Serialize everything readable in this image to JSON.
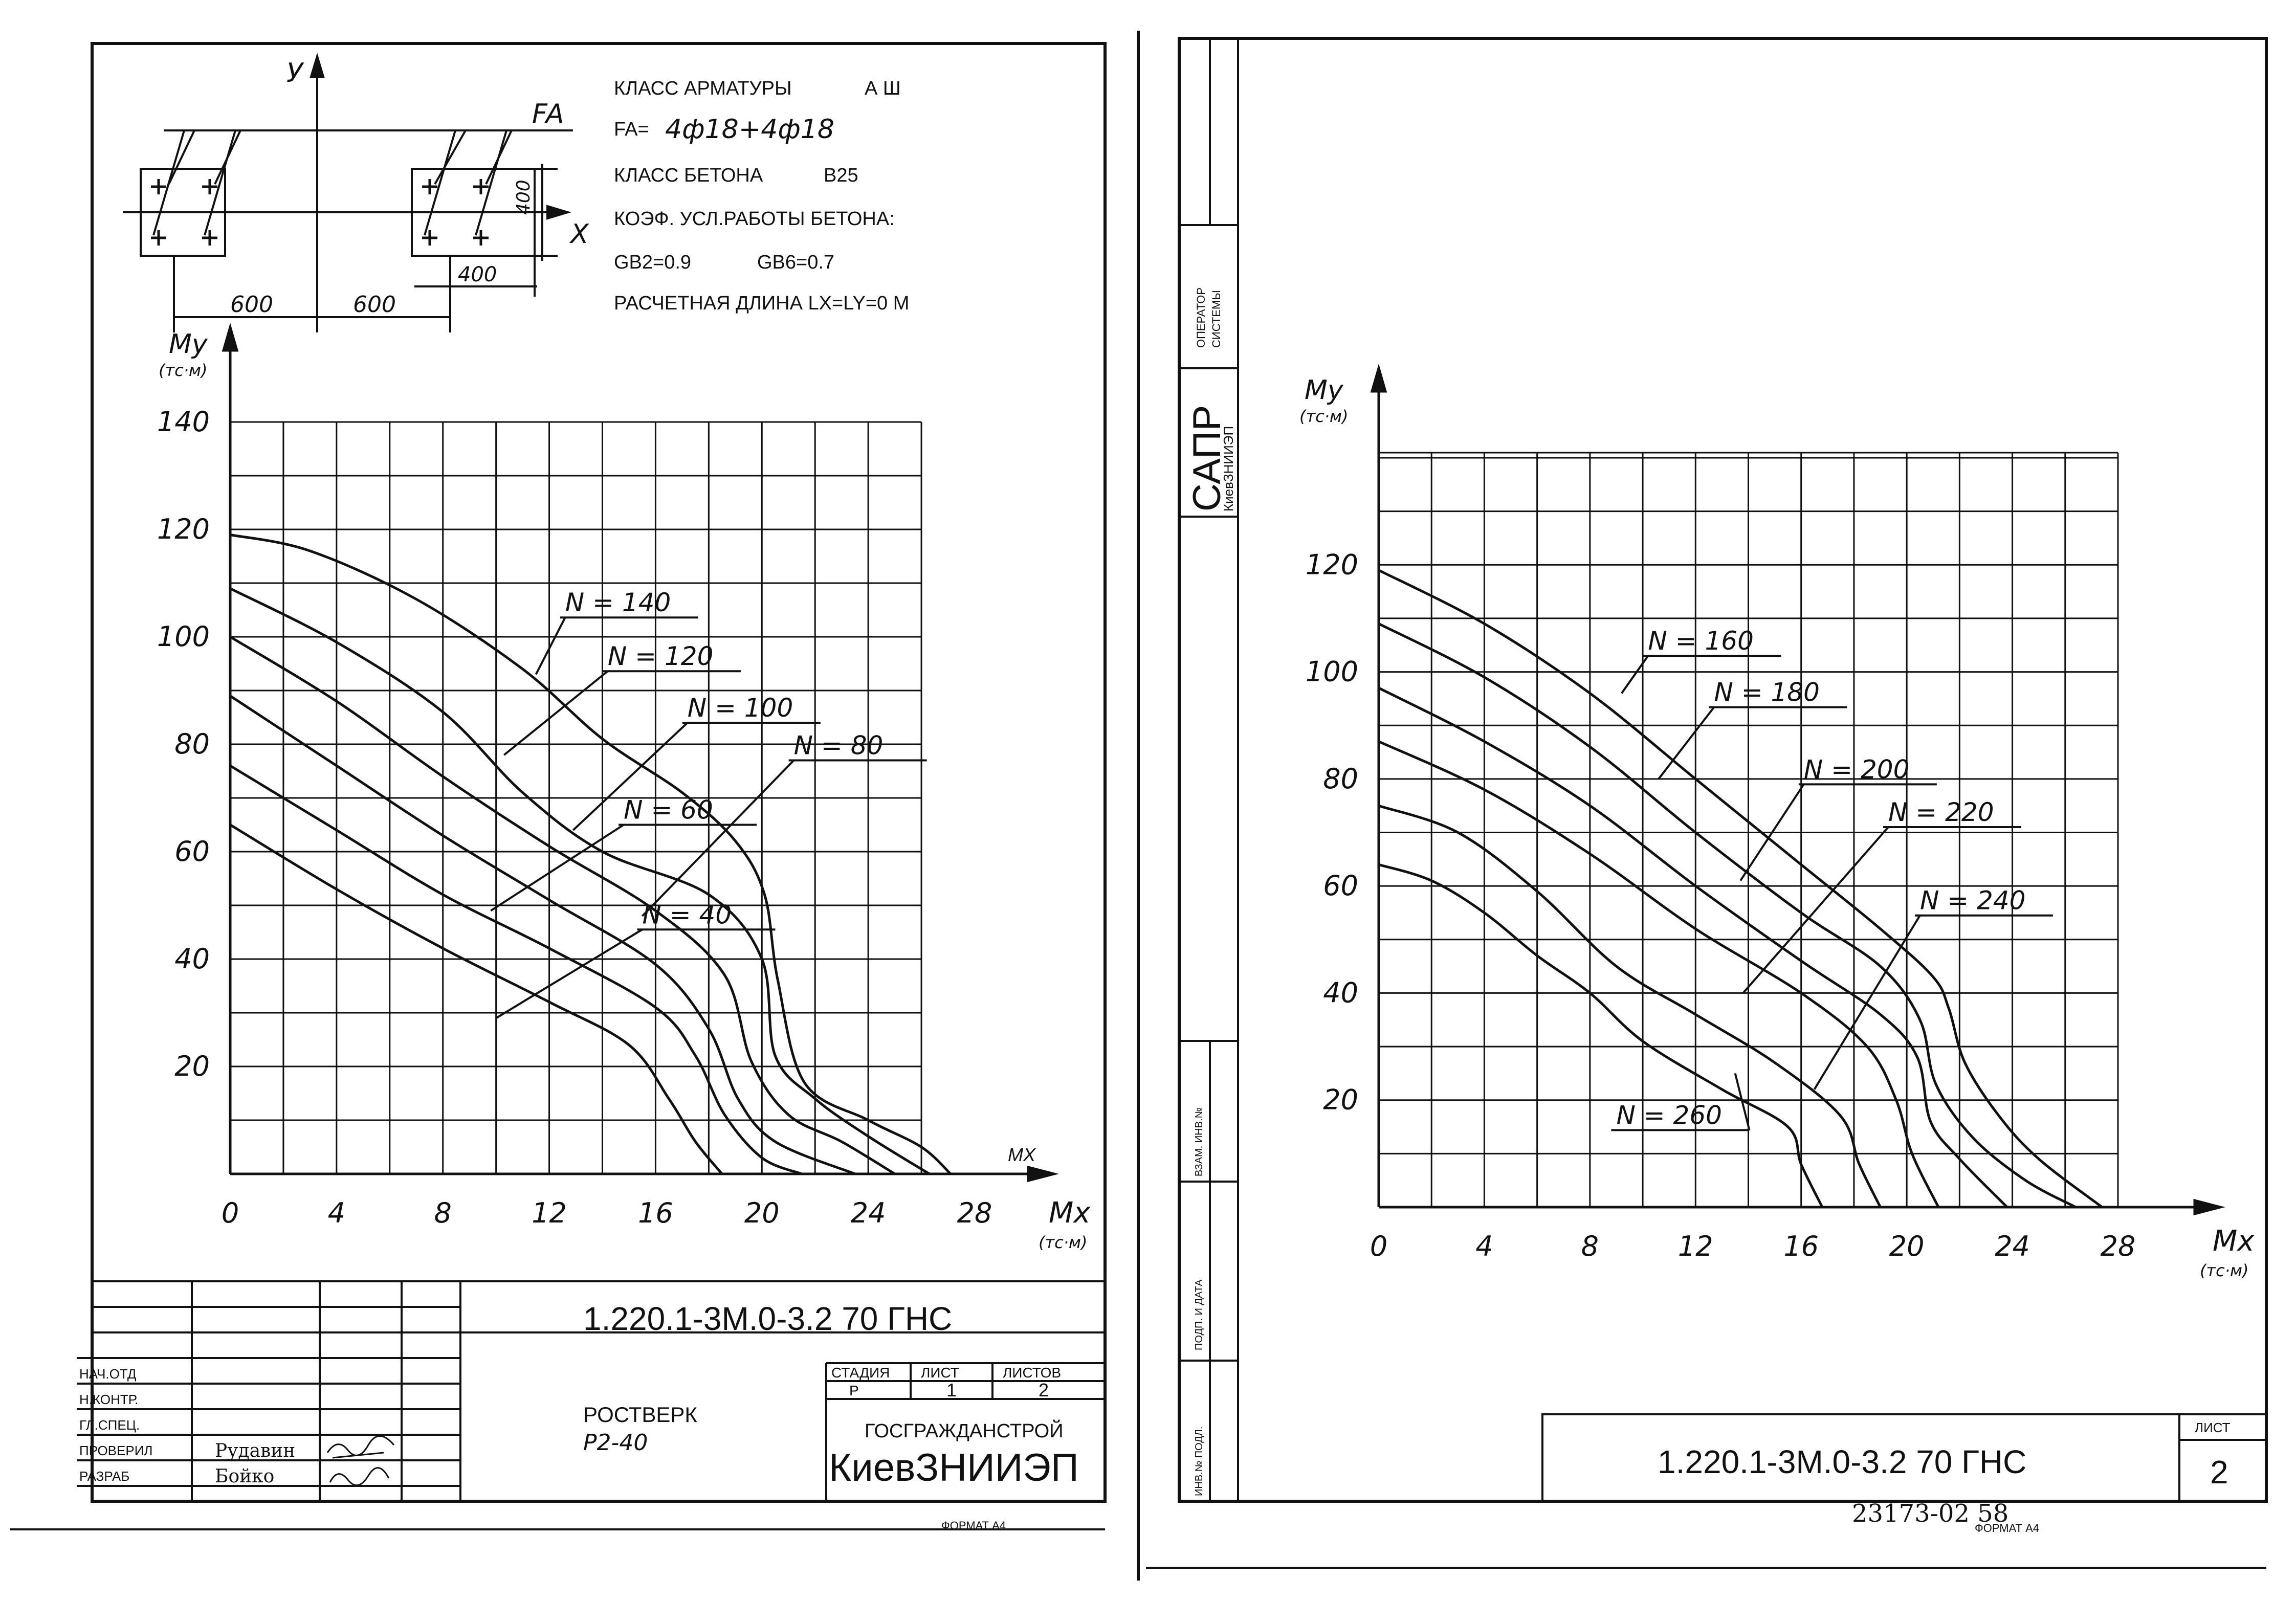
{
  "left": {
    "props": {
      "class_arm": "КЛАСС АРМАТУРЫ",
      "class_arm_val": "А Ш",
      "fa_label": "FA=",
      "fa_val": "4ф18+4ф18",
      "class_concrete": "КЛАСС БЕТОНА",
      "class_concrete_val": "В25",
      "coef": "КОЭФ. УСЛ.РАБОТЫ БЕТОНА:",
      "gb2": "GB2=0.9",
      "gb6": "GB6=0.7",
      "length": "РАСЧЕТНАЯ ДЛИНА LX=LY=0 M"
    },
    "section": {
      "y": "У",
      "x": "Х",
      "fa": "FA",
      "dim_400_v": "400",
      "dim_400_h": "400",
      "dim_600_a": "600",
      "dim_600_b": "600"
    },
    "axis_title_y": "Му",
    "axis_unit_y": "(тс·м)",
    "axis_title_x": "Мх",
    "axis_unit_x": "(тс·м)",
    "axis_arrow_x": "МХ",
    "titleblock": {
      "code": "1.220.1-3М.0-3.2 70 ГНС",
      "name1": "РОСТВЕРК",
      "name2": "Р2-40",
      "h_stage": "СТАДИЯ",
      "h_sheet": "ЛИСТ",
      "h_sheets": "ЛИСТОВ",
      "v_stage": "Р",
      "v_sheet": "1",
      "v_sheets": "2",
      "org1": "ГОСГРАЖДАНСТРОЙ",
      "org2": "КиевЗНИИЭП",
      "r1": "НАЧ.ОТД",
      "r2": "Н.КОНТР.",
      "r3": "ГЛ.СПЕЦ.",
      "r4": "ПРОВЕРИЛ",
      "r5": "РАЗРАБ",
      "n4": "Рудавин",
      "n5": "Бойко",
      "format": "ФОРМАТ А4"
    }
  },
  "right": {
    "axis_title_y": "Му",
    "axis_unit_y": "(тс·м)",
    "axis_title_x": "Мх",
    "axis_unit_x": "(тс·м)",
    "stamp": {
      "sapr": "САПР",
      "org": "КиевЗНИИЭП",
      "operator1": "ОПЕРАТОР",
      "operator2": "СИСТЕМЫ",
      "v1": "ВЗАМ. ИНВ.№",
      "v2": "ПОДП. И ДАТА",
      "v3": "ИНВ.№ ПОДЛ."
    },
    "titleblock": {
      "code": "1.220.1-3М.0-3.2 70 ГНС",
      "sheet_label": "ЛИСТ",
      "sheet_num": "2",
      "archive": "23173-02 58",
      "format": "ФОРМАТ А4"
    }
  },
  "chart_data": [
    {
      "type": "line",
      "title": "",
      "xlabel": "Мх (тс·м)",
      "ylabel": "Му (тс·м)",
      "xlim": [
        0,
        28
      ],
      "ylim": [
        0,
        140
      ],
      "x_ticks": [
        "0",
        "4",
        "8",
        "12",
        "16",
        "20",
        "24",
        "28"
      ],
      "y_ticks": [
        "20",
        "40",
        "60",
        "80",
        "100",
        "120",
        "140"
      ],
      "grid": true,
      "series": [
        {
          "name": "N = 40",
          "points": [
            [
              0,
              65
            ],
            [
              4,
              53
            ],
            [
              8,
              42
            ],
            [
              12,
              32
            ],
            [
              15,
              24
            ],
            [
              16.5,
              14
            ],
            [
              17.5,
              6
            ],
            [
              18.5,
              0
            ]
          ]
        },
        {
          "name": "N = 60",
          "points": [
            [
              0,
              76
            ],
            [
              4,
              64
            ],
            [
              8,
              52
            ],
            [
              12,
              42
            ],
            [
              16,
              31
            ],
            [
              17.5,
              22
            ],
            [
              18.6,
              11
            ],
            [
              20,
              3
            ],
            [
              21.5,
              0
            ]
          ]
        },
        {
          "name": "N = 80",
          "points": [
            [
              0,
              89
            ],
            [
              4,
              76
            ],
            [
              8,
              63
            ],
            [
              12,
              51
            ],
            [
              16,
              39
            ],
            [
              18,
              27
            ],
            [
              19.1,
              14
            ],
            [
              20.5,
              6
            ],
            [
              23.5,
              0
            ]
          ]
        },
        {
          "name": "N = 100",
          "points": [
            [
              0,
              100
            ],
            [
              4,
              88
            ],
            [
              8,
              74
            ],
            [
              12,
              61
            ],
            [
              16,
              49
            ],
            [
              18.6,
              37
            ],
            [
              19.6,
              21
            ],
            [
              21,
              11
            ],
            [
              23,
              6
            ],
            [
              25,
              0
            ]
          ]
        },
        {
          "name": "N = 120",
          "points": [
            [
              0,
              109
            ],
            [
              4,
              99
            ],
            [
              8,
              86
            ],
            [
              11,
              71
            ],
            [
              14,
              60
            ],
            [
              18,
              52
            ],
            [
              20,
              40
            ],
            [
              20.5,
              22
            ],
            [
              22,
              14
            ],
            [
              24,
              7
            ],
            [
              26.3,
              0
            ]
          ]
        },
        {
          "name": "N = 140",
          "points": [
            [
              0,
              119
            ],
            [
              3,
              116
            ],
            [
              7,
              107
            ],
            [
              11,
              94
            ],
            [
              14,
              81
            ],
            [
              17,
              71
            ],
            [
              19,
              62
            ],
            [
              20.1,
              52
            ],
            [
              20.6,
              36
            ],
            [
              21.6,
              17
            ],
            [
              24,
              10
            ],
            [
              26,
              5
            ],
            [
              27.1,
              0
            ]
          ]
        }
      ]
    },
    {
      "type": "line",
      "title": "",
      "xlabel": "Мх (тс·м)",
      "ylabel": "Му (тс·м)",
      "xlim": [
        0,
        28
      ],
      "ylim": [
        0,
        140
      ],
      "x_ticks": [
        "0",
        "4",
        "8",
        "12",
        "16",
        "20",
        "24",
        "28"
      ],
      "y_ticks": [
        "20",
        "40",
        "60",
        "80",
        "100",
        "120"
      ],
      "grid": true,
      "series": [
        {
          "name": "N = 160",
          "points": [
            [
              0,
              119
            ],
            [
              4,
              109
            ],
            [
              8,
              96
            ],
            [
              12,
              80
            ],
            [
              16,
              64
            ],
            [
              19,
              52
            ],
            [
              21,
              43
            ],
            [
              21.6,
              37
            ],
            [
              22.2,
              27
            ],
            [
              23.5,
              17
            ],
            [
              25,
              9
            ],
            [
              27.4,
              0
            ]
          ]
        },
        {
          "name": "N = 180",
          "points": [
            [
              0,
              109
            ],
            [
              4,
              99
            ],
            [
              8,
              86
            ],
            [
              12,
              70
            ],
            [
              16,
              55
            ],
            [
              19,
              45
            ],
            [
              20.5,
              35
            ],
            [
              21.1,
              23
            ],
            [
              22.5,
              13
            ],
            [
              24.5,
              5
            ],
            [
              26.4,
              0
            ]
          ]
        },
        {
          "name": "N = 200",
          "points": [
            [
              0,
              97
            ],
            [
              4,
              87
            ],
            [
              8,
              75
            ],
            [
              12,
              60
            ],
            [
              16,
              46
            ],
            [
              19,
              36
            ],
            [
              20.4,
              28
            ],
            [
              20.9,
              16
            ],
            [
              22,
              9
            ],
            [
              23.8,
              0
            ]
          ]
        },
        {
          "name": "N = 220",
          "points": [
            [
              0,
              87
            ],
            [
              4,
              78
            ],
            [
              8,
              66
            ],
            [
              12,
              52
            ],
            [
              16,
              40
            ],
            [
              18.5,
              30
            ],
            [
              19.6,
              20
            ],
            [
              20.2,
              10
            ],
            [
              21.2,
              0
            ]
          ]
        },
        {
          "name": "N = 240",
          "points": [
            [
              0,
              75
            ],
            [
              3,
              70
            ],
            [
              6,
              59
            ],
            [
              9,
              45
            ],
            [
              12,
              36
            ],
            [
              15,
              27
            ],
            [
              17.5,
              17
            ],
            [
              18.2,
              8
            ],
            [
              19,
              0
            ]
          ]
        },
        {
          "name": "N = 260",
          "points": [
            [
              0,
              64
            ],
            [
              2,
              61
            ],
            [
              4,
              55
            ],
            [
              6,
              47
            ],
            [
              8,
              40
            ],
            [
              10,
              31
            ],
            [
              13,
              22
            ],
            [
              15.5,
              15
            ],
            [
              16,
              8
            ],
            [
              16.8,
              0
            ]
          ]
        }
      ]
    }
  ]
}
